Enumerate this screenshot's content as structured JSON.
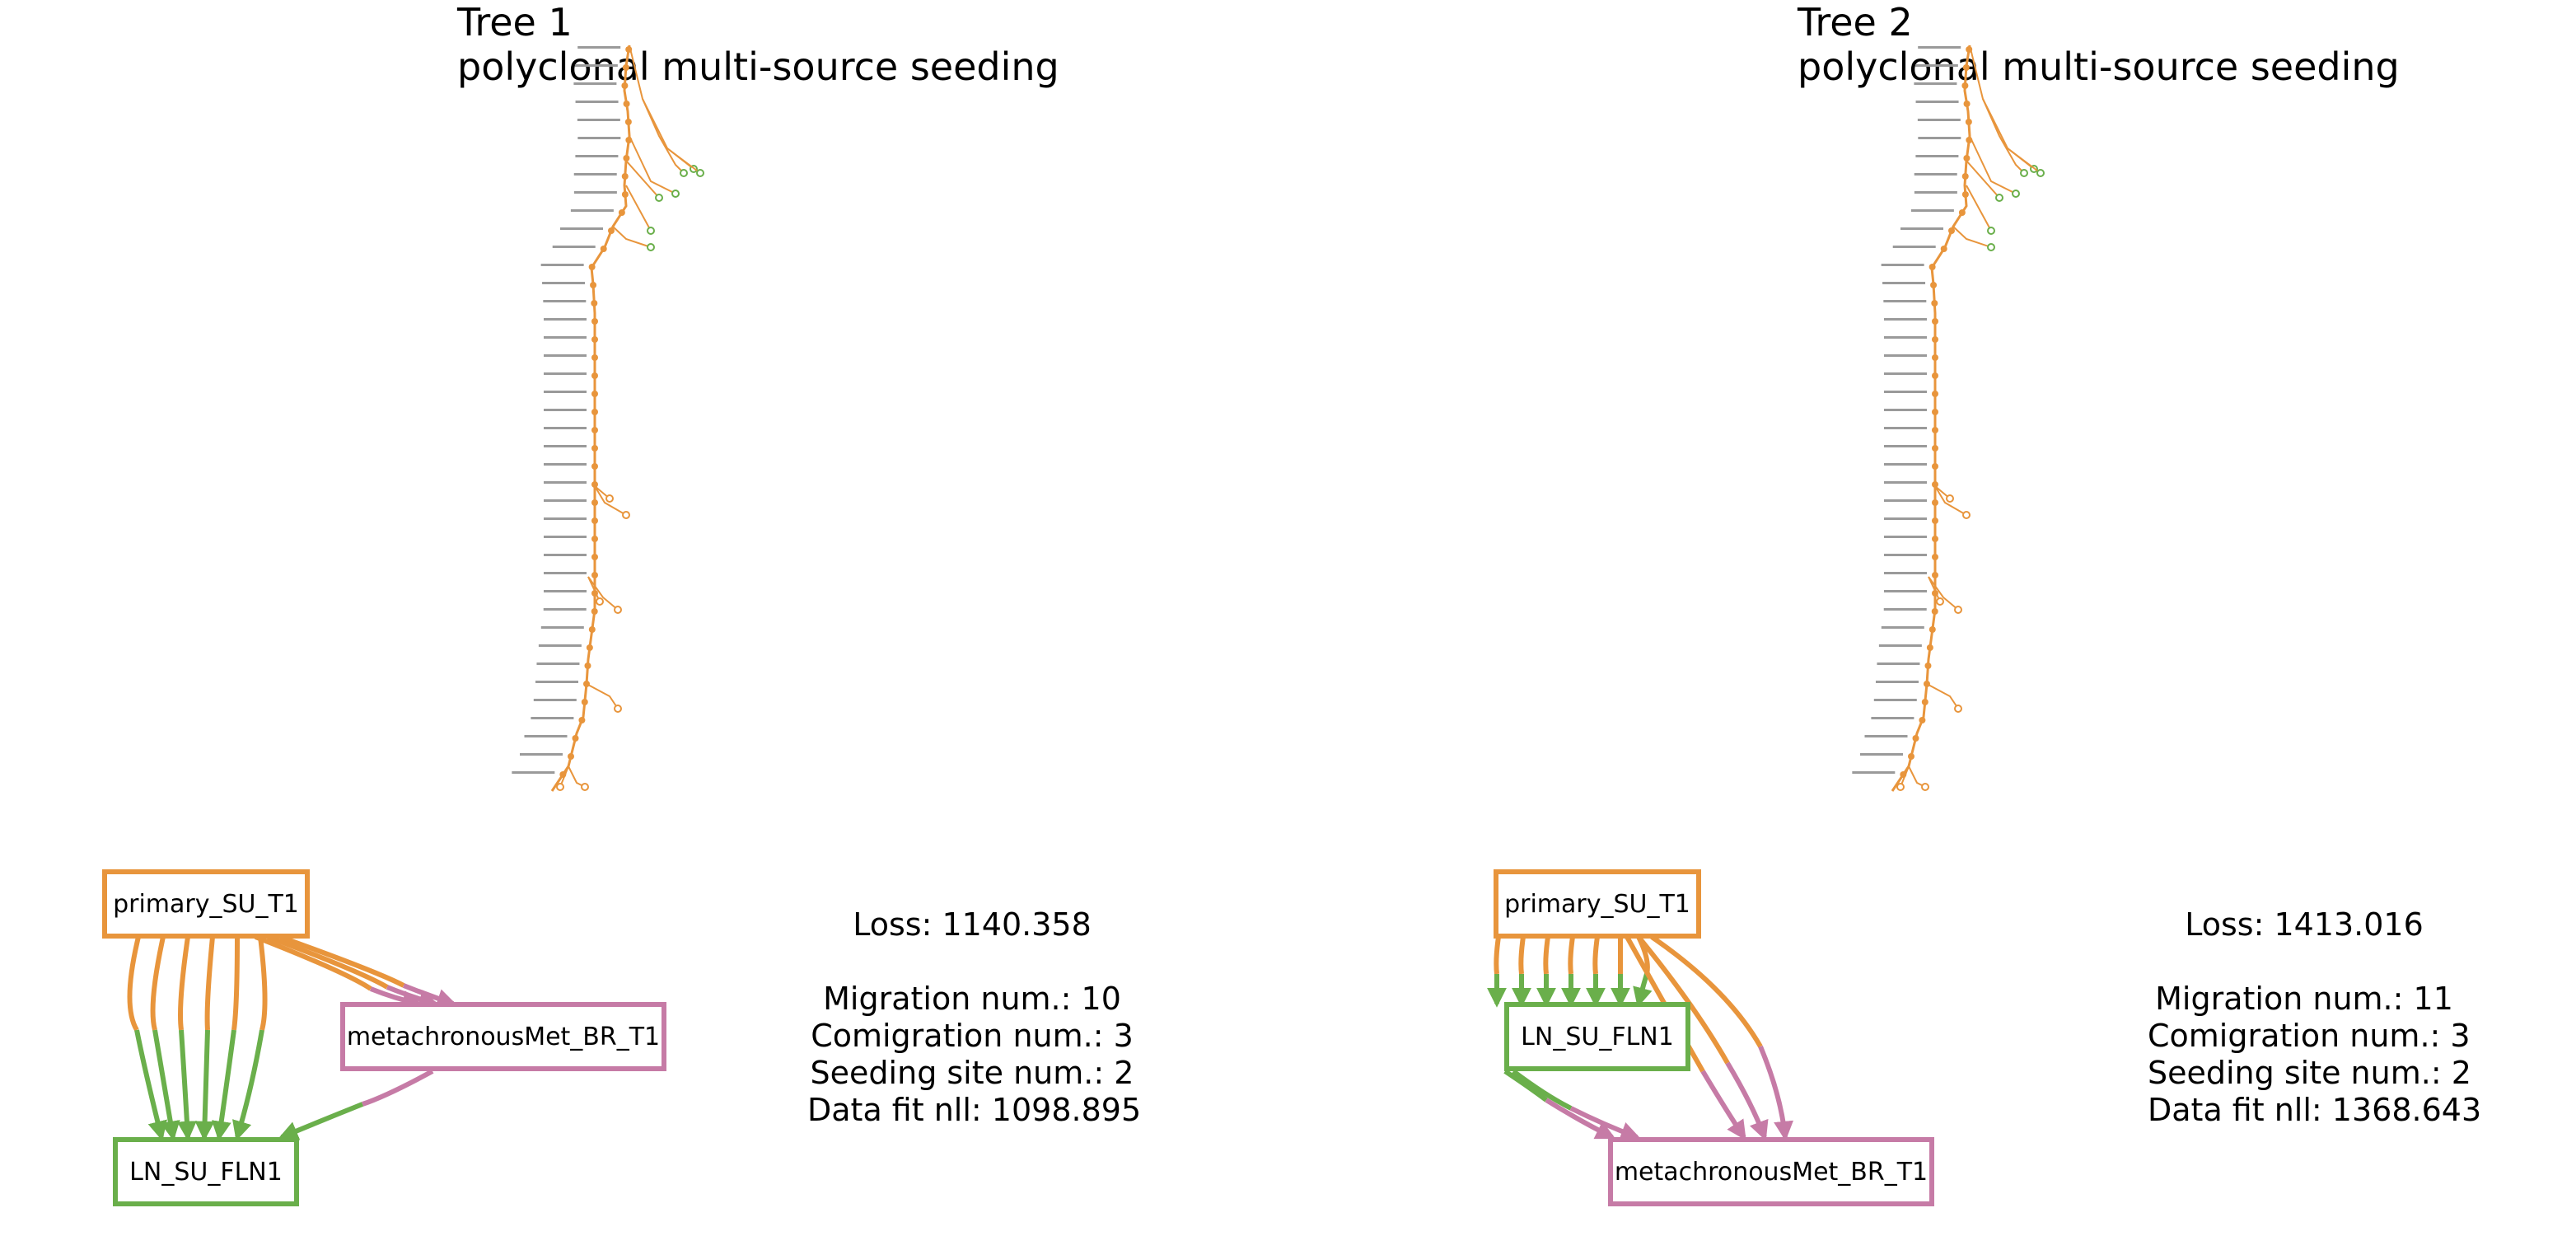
{
  "colors": {
    "primary": "#E8953C",
    "ln": "#6AAF4B",
    "met": "#C67BA6",
    "text": "#000000"
  },
  "panels": [
    {
      "tree_title": "Tree 1",
      "tree_subtitle": "polyclonal multi-source seeding",
      "stats": {
        "loss": "Loss: 1140.358",
        "migration": "Migration num.: 10",
        "comigration": "Comigration num.: 3",
        "seeding": "Seeding site num.: 2",
        "datafit": "Data fit nll: 1098.895"
      },
      "graph": {
        "nodes": {
          "primary": "primary_SU_T1",
          "ln": "LN_SU_FLN1",
          "met": "metachronousMet_BR_T1"
        }
      }
    },
    {
      "tree_title": "Tree 2",
      "tree_subtitle": "polyclonal multi-source seeding",
      "stats": {
        "loss": "Loss: 1413.016",
        "migration": "Migration num.: 11",
        "comigration": "Comigration num.: 3",
        "seeding": "Seeding site num.: 2",
        "datafit": "Data fit nll: 1368.643"
      },
      "graph": {
        "nodes": {
          "primary": "primary_SU_T1",
          "ln": "LN_SU_FLN1",
          "met": "metachronousMet_BR_T1"
        }
      }
    }
  ]
}
